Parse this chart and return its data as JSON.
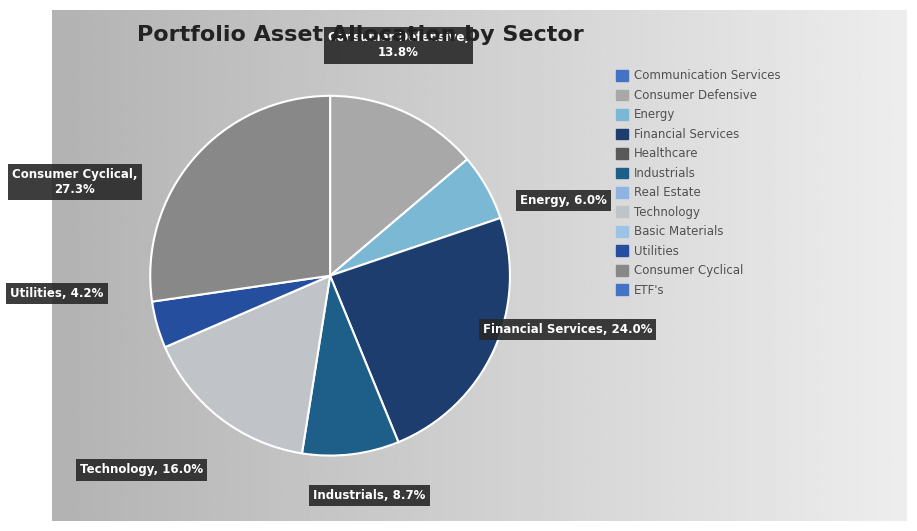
{
  "title": "Portfolio Asset Allocation by Sector",
  "sectors": [
    "Consumer Defensive",
    "Energy",
    "Financial Services",
    "Industrials",
    "Technology",
    "Utilities",
    "Consumer Cyclical"
  ],
  "values": [
    13.8,
    6.0,
    24.0,
    8.7,
    16.0,
    4.2,
    27.3
  ],
  "colors": [
    "#a8a8a8",
    "#7ab8d4",
    "#1c3d6e",
    "#1e5f8a",
    "#c0c4c8",
    "#254f9e",
    "#888888"
  ],
  "legend_entries": [
    {
      "label": "Communication Services",
      "color": "#4472c4"
    },
    {
      "label": "Consumer Defensive",
      "color": "#a8a8a8"
    },
    {
      "label": "Energy",
      "color": "#7ab8d4"
    },
    {
      "label": "Financial Services",
      "color": "#1c3d6e"
    },
    {
      "label": "Healthcare",
      "color": "#595959"
    },
    {
      "label": "Industrials",
      "color": "#1e5f8a"
    },
    {
      "label": "Real Estate",
      "color": "#8db4e2"
    },
    {
      "label": "Technology",
      "color": "#c0c4c8"
    },
    {
      "label": "Basic Materials",
      "color": "#9dc3e6"
    },
    {
      "label": "Utilities",
      "color": "#254f9e"
    },
    {
      "label": "Consumer Cyclical",
      "color": "#888888"
    },
    {
      "label": "ETF's",
      "color": "#4472c4"
    }
  ],
  "label_texts": [
    "Consumer Defensive,\n13.8%",
    "Energy, 6.0%",
    "Financial Services, 24.0%",
    "Industrials, 8.7%",
    "Technology, 16.0%",
    "Utilities, 4.2%",
    "Consumer Cyclical,\n27.3%"
  ],
  "title_fontsize": 16,
  "startangle": 90
}
